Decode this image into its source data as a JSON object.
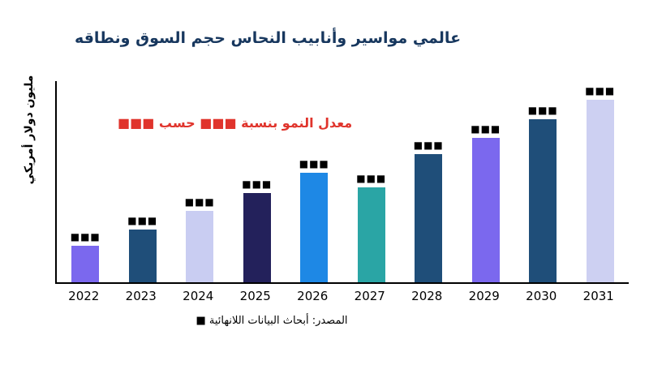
{
  "title": {
    "text": "عالمي مواسير وأنابيب النحاس حجم السوق ونطاقه",
    "color": "#17375E"
  },
  "ylabel": "مليون دولار أمريكي",
  "annotation": {
    "text": "معدل النمو بنسبة ■■■ حسب ■■■",
    "color": "#E0342C"
  },
  "source": "المصدر: أبحاث البيانات اللانهائية ■",
  "chart_data": {
    "type": "bar",
    "title": "عالمي مواسير وأنابيب النحاس حجم السوق ونطاقه",
    "xlabel": "",
    "ylabel": "مليون دولار أمريكي",
    "categories": [
      "2022",
      "2023",
      "2024",
      "2025",
      "2026",
      "2027",
      "2028",
      "2029",
      "2030",
      "2031"
    ],
    "values": [
      20,
      29,
      39,
      49,
      60,
      52,
      70,
      79,
      89,
      100
    ],
    "ylim": [
      0,
      110
    ],
    "bar_labels": [
      "■■■",
      "■■■",
      "■■■",
      "■■■",
      "■■■",
      "■■■",
      "■■■",
      "■■■",
      "■■■",
      "■■■"
    ],
    "bar_colors": [
      "#7B68EE",
      "#1F4E79",
      "#C9CDF2",
      "#23215B",
      "#1E88E5",
      "#2AA5A5",
      "#1F4E79",
      "#7B68EE",
      "#1F4E79",
      "#CDD0F2"
    ],
    "grid": false,
    "legend": false,
    "annotation": "معدل النمو بنسبة ■■■ حسب ■■■"
  }
}
